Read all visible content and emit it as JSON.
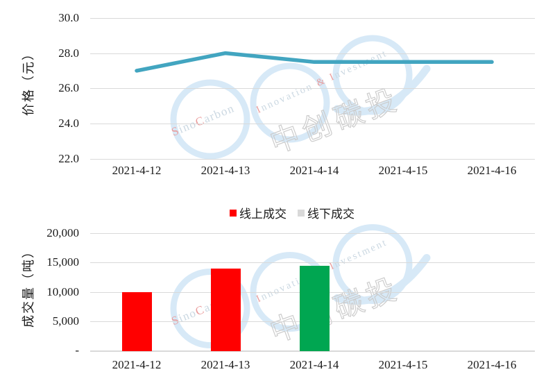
{
  "watermark": {
    "brand_en_1": "SinoCarbon",
    "brand_en_2": "Innovation & Investment",
    "brand_cn": "中创碳投",
    "circle_color": "#d7e9f7",
    "palette": {
      "red": "#ea9c9c",
      "gray": "#cbd8e2",
      "cn": "#cccccc"
    },
    "brand_en_1_parts": [
      {
        "t": "S",
        "c": "red"
      },
      {
        "t": "ino",
        "c": "gray"
      },
      {
        "t": "C",
        "c": "red"
      },
      {
        "t": "arbon",
        "c": "gray"
      }
    ],
    "brand_en_2_parts": [
      {
        "t": "I",
        "c": "red"
      },
      {
        "t": "nnovation",
        "c": "gray"
      },
      {
        "t": "&",
        "c": "red",
        "dx": 7
      },
      {
        "t": "I",
        "c": "red",
        "dx": 7
      },
      {
        "t": "nvestment",
        "c": "gray"
      }
    ]
  },
  "chart_data": [
    {
      "type": "line",
      "title": "",
      "ylabel": "价格（元）",
      "xlabel": "",
      "categories": [
        "2021-4-12",
        "2021-4-13",
        "2021-4-14",
        "2021-4-15",
        "2021-4-16"
      ],
      "series": [
        {
          "name": "价格",
          "color": "#42a5c0",
          "values": [
            27.0,
            28.0,
            27.5,
            27.5,
            27.5
          ]
        }
      ],
      "ylim": [
        22.0,
        30.0
      ],
      "ytick_step": 2.0,
      "yticks": [
        "30.0",
        "28.0",
        "26.0",
        "24.0",
        "22.0"
      ],
      "grid": true,
      "legend_position": "none"
    },
    {
      "type": "bar",
      "title": "",
      "ylabel": "成交量（吨）",
      "xlabel": "",
      "categories": [
        "2021-4-12",
        "2021-4-13",
        "2021-4-14",
        "2021-4-15",
        "2021-4-16"
      ],
      "bars": [
        {
          "category": "2021-4-12",
          "value": 10000,
          "color": "#ff0000"
        },
        {
          "category": "2021-4-13",
          "value": 14000,
          "color": "#ff0000"
        },
        {
          "category": "2021-4-14",
          "value": 14400,
          "color": "#00a651"
        }
      ],
      "ylim": [
        0,
        20000
      ],
      "ytick_step": 5000,
      "yticks": [
        "20,000",
        "15,000",
        "10,000",
        "5,000",
        "-"
      ],
      "grid": true,
      "legend_position": "top-center",
      "legend": [
        {
          "label": "线上成交",
          "color": "#ff0000"
        },
        {
          "label": "线下成交",
          "color": "#d9d9d9"
        }
      ],
      "gridline_color": "#d9d9d9"
    }
  ]
}
